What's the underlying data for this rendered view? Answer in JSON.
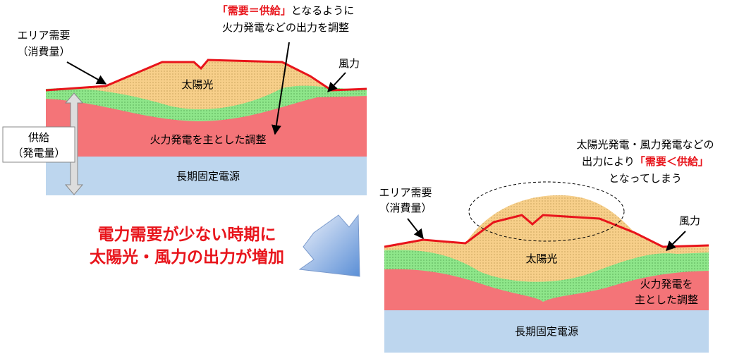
{
  "left": {
    "demand_label": [
      "エリア需要",
      "（消費量）"
    ],
    "supply_label": [
      "供給",
      "（発電量）"
    ],
    "annotation": {
      "highlight": "「需要＝供給」",
      "line1_rest": "となるように",
      "line2": "火力発電などの出力を調整"
    },
    "solar": "太陽光",
    "wind": "風力",
    "thermal": "火力発電を主とした調整",
    "baseload": "長期固定電源"
  },
  "middle": {
    "lines": [
      "電力需要が少ない時期に",
      "太陽光・風力の出力が増加"
    ]
  },
  "right": {
    "annotation": {
      "line1": "太陽光発電・風力発電などの",
      "line2_start": "出力により",
      "highlight": "「需要＜供給」",
      "line3": "となってしまう"
    },
    "demand_label": [
      "エリア需要",
      "（消費量）"
    ],
    "wind": "風力",
    "solar": "太陽光",
    "thermal": [
      "火力発電を",
      "主とした調整"
    ],
    "baseload": "長期固定電源"
  }
}
